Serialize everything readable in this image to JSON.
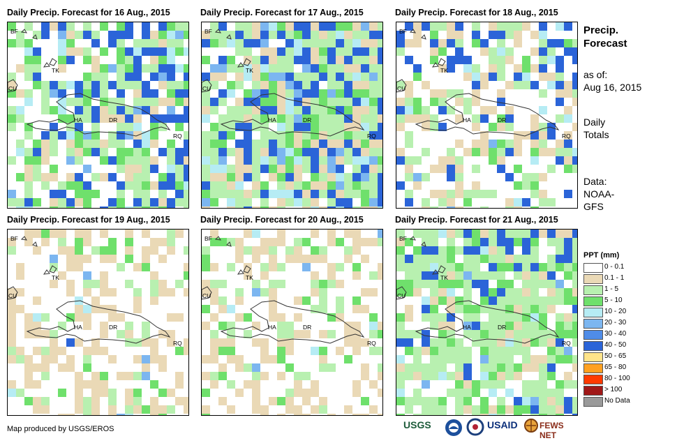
{
  "panels": [
    {
      "title": "Daily Precip. Forecast for 16 Aug., 2015"
    },
    {
      "title": "Daily Precip. Forecast for 17 Aug., 2015"
    },
    {
      "title": "Daily Precip. Forecast for 18 Aug., 2015"
    },
    {
      "title": "Daily Precip. Forecast for 19 Aug., 2015"
    },
    {
      "title": "Daily Precip. Forecast for 20 Aug., 2015"
    },
    {
      "title": "Daily Precip. Forecast for 21 Aug., 2015"
    }
  ],
  "map_labels": {
    "bf": "BF",
    "cu": "CU",
    "tk": "TK",
    "ha": "HA",
    "dr": "DR",
    "rq": "RQ"
  },
  "sidebar": {
    "heading_line1": "Precip.",
    "heading_line2": "Forecast",
    "asof_line1": "as of:",
    "asof_line2": "Aug 16, 2015",
    "daily_line1": "Daily",
    "daily_line2": "Totals",
    "data_line1": "Data:",
    "data_line2": "NOAA-",
    "data_line3": "GFS"
  },
  "legend": {
    "title": "PPT (mm)",
    "items": [
      {
        "label": "0 - 0.1",
        "color": "#ffffff"
      },
      {
        "label": "0.1 - 1",
        "color": "#ead9b6"
      },
      {
        "label": "1 - 5",
        "color": "#b8f0b0"
      },
      {
        "label": "5 - 10",
        "color": "#6fe06c"
      },
      {
        "label": "10 - 20",
        "color": "#b6ecf4"
      },
      {
        "label": "20 - 30",
        "color": "#7cb6f0"
      },
      {
        "label": "30 - 40",
        "color": "#4f8ce8"
      },
      {
        "label": "40 - 50",
        "color": "#2b64d8"
      },
      {
        "label": "50 - 65",
        "color": "#ffe48a"
      },
      {
        "label": "65 - 80",
        "color": "#ffa020"
      },
      {
        "label": "80 - 100",
        "color": "#ff3a00"
      },
      {
        "label": "> 100",
        "color": "#a01818"
      },
      {
        "label": "No Data",
        "color": "#9a9a9a"
      }
    ]
  },
  "footer": {
    "credit": "Map produced by USGS/EROS"
  },
  "logos": {
    "usgs": "USGS",
    "usaid": "USAID",
    "fewsnet": "FEWS NET"
  }
}
